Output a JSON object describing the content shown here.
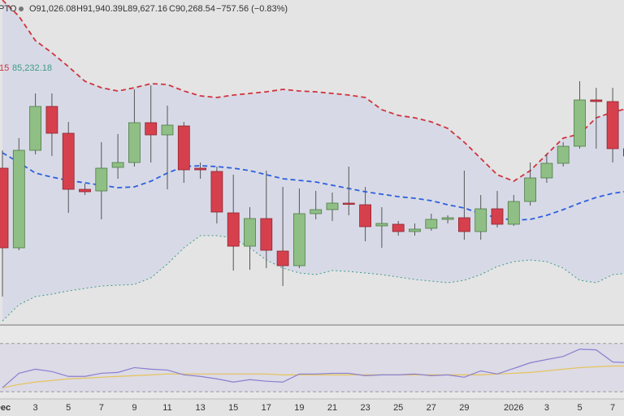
{
  "chart_data": {
    "type": "candlestick",
    "legend": {
      "symbol": "PTO",
      "open": "O91,026.08",
      "high": "H91,940.39",
      "low": "L89,627.16",
      "close": "C90,268.54",
      "change": "−757.56 (−0.83%)",
      "band_upper": "15",
      "band_lower": "85,232.18"
    },
    "categories": [
      "Dec",
      null,
      "3",
      null,
      "5",
      null,
      "7",
      null,
      "9",
      null,
      "11",
      null,
      "13",
      null,
      "15",
      null,
      "17",
      null,
      "19",
      null,
      "21",
      null,
      "23",
      null,
      "25",
      null,
      "27",
      null,
      "29",
      null,
      null,
      "2026",
      null,
      "3",
      null,
      "5",
      null,
      "7",
      null
    ],
    "open": [
      89669,
      86435,
      90395,
      92177,
      91088,
      88811,
      88745,
      89702,
      89900,
      91517,
      91022,
      91385,
      89669,
      89537,
      87854,
      86501,
      87623,
      86303,
      85709,
      87821,
      87986,
      88250,
      88184,
      87326,
      87392,
      87095,
      87227,
      87590,
      87656,
      87095,
      88019,
      87392,
      88316,
      89273,
      89867,
      90560,
      92441,
      92375,
      90461
    ],
    "high": [
      90395,
      90890,
      92705,
      92705,
      91550,
      89042,
      90725,
      91055,
      92870,
      93035,
      92210,
      91550,
      89900,
      89735,
      89405,
      88085,
      89570,
      88910,
      88844,
      88745,
      88679,
      89735,
      88910,
      88085,
      87524,
      87425,
      87821,
      87755,
      89570,
      88580,
      88745,
      88580,
      89900,
      90230,
      90725,
      93200,
      92936,
      92936,
      90725
    ],
    "low": [
      84455,
      86336,
      90230,
      90164,
      87854,
      88580,
      87590,
      89240,
      89735,
      89900,
      88811,
      89075,
      89240,
      87425,
      85511,
      85544,
      85610,
      84884,
      85610,
      87590,
      87524,
      87755,
      86699,
      86435,
      86930,
      86930,
      87128,
      87425,
      86765,
      86765,
      87260,
      87326,
      88151,
      89075,
      89735,
      90461,
      90461,
      89900,
      90065
    ],
    "close": [
      86435,
      90395,
      92177,
      91088,
      88811,
      88712,
      89669,
      89900,
      91517,
      91022,
      91418,
      89603,
      89603,
      87887,
      86501,
      87623,
      86336,
      85709,
      87821,
      87986,
      88250,
      88217,
      87293,
      87425,
      87095,
      87194,
      87590,
      87656,
      87095,
      88019,
      87392,
      88316,
      89273,
      89867,
      90560,
      92441,
      92375,
      90461,
      90164
    ],
    "up_color": "#8fbf85",
    "down_color": "#d6404d",
    "ylim": [
      83300,
      96500
    ],
    "overlays": [
      {
        "color": "#d0343e",
        "dash": "dashed",
        "values": [
          96500,
          95840,
          94850,
          94355,
          93794,
          93200,
          92936,
          92804,
          92936,
          93101,
          93068,
          92804,
          92606,
          92540,
          92639,
          92705,
          92771,
          92870,
          92804,
          92771,
          92705,
          92639,
          92540,
          92045,
          91814,
          91715,
          91550,
          91286,
          90725,
          90065,
          89405,
          89141,
          89570,
          90230,
          90890,
          91055,
          91715,
          91946,
          92111
        ]
      },
      {
        "color": "#2f5fe0",
        "dash": "dashed",
        "values": [
          90296,
          89900,
          89471,
          89306,
          89174,
          89075,
          88976,
          88877,
          88910,
          89141,
          89471,
          89735,
          89768,
          89735,
          89669,
          89570,
          89405,
          89240,
          89174,
          89108,
          88976,
          88844,
          88712,
          88613,
          88514,
          88448,
          88349,
          88184,
          88052,
          87821,
          87656,
          87557,
          87590,
          87755,
          87986,
          88250,
          88481,
          88646,
          88745
        ]
      },
      {
        "color": "#3f9a88",
        "dash": "dotted",
        "values": [
          83465,
          84125,
          84455,
          84554,
          84686,
          84785,
          84884,
          84917,
          84950,
          85214,
          85775,
          86435,
          86930,
          86930,
          86831,
          86435,
          85940,
          85610,
          85412,
          85346,
          85511,
          85478,
          85412,
          85346,
          85247,
          85148,
          85082,
          85016,
          85115,
          85346,
          85676,
          85874,
          85940,
          85874,
          85610,
          85115,
          85016,
          85346,
          85412
        ]
      }
    ],
    "band_fill": "#d7dae6",
    "rsi": {
      "ylim": [
        24,
        82
      ],
      "levels": [
        30,
        70
      ],
      "series": [
        {
          "color": "#8a7fd0",
          "values": [
            33.3,
            45.3,
            48.7,
            46.7,
            42.7,
            42.7,
            45.3,
            46.0,
            50.0,
            48.7,
            48.0,
            44.0,
            42.7,
            40.7,
            38.0,
            40.0,
            38.7,
            38.0,
            44.7,
            44.7,
            45.3,
            45.3,
            43.3,
            44.0,
            44.0,
            44.7,
            43.3,
            44.0,
            42.0,
            47.3,
            44.7,
            49.3,
            54.0,
            56.7,
            59.3,
            65.3,
            64.7,
            54.7,
            54.0
          ]
        },
        {
          "color": "#e6c35a",
          "values": [
            33.3,
            36.0,
            38.0,
            39.3,
            40.7,
            41.3,
            42.0,
            42.7,
            43.3,
            44.0,
            44.7,
            44.7,
            44.7,
            44.7,
            44.7,
            44.7,
            44.7,
            44.0,
            44.0,
            44.0,
            44.0,
            44.0,
            44.0,
            44.0,
            44.0,
            44.0,
            44.0,
            44.0,
            44.0,
            44.0,
            44.7,
            45.3,
            46.0,
            47.3,
            48.7,
            50.0,
            50.7,
            51.3,
            51.3
          ]
        }
      ]
    }
  }
}
